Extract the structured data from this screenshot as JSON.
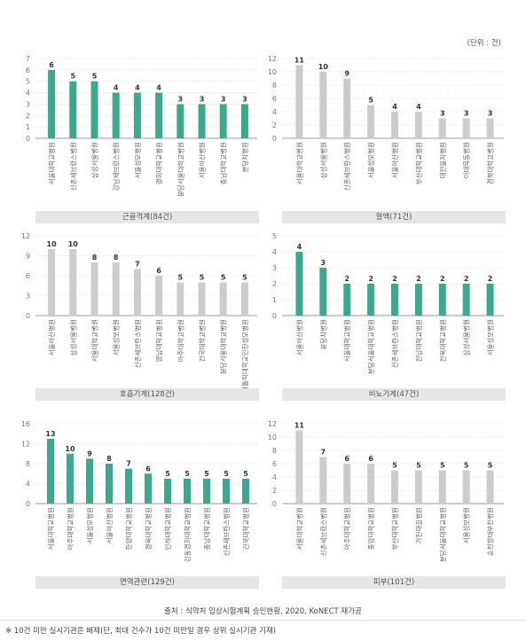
{
  "unit_label": "(단위 : 건)",
  "source": "출처 : 식약처 임상시험계획 승인현황, 2020, KoNECT 재가공",
  "footnote": "※ 10건 미만 실시기관은 배제(단, 최대 건수가 10건 미만일 경우 상위 실시기관 기재)",
  "colors": {
    "teal": "#3aaa8c",
    "gray": "#cccccc"
  },
  "chart_data": [
    {
      "type": "bar",
      "title": "근골격계(84건)",
      "color": "#3aaa8c",
      "ylim": [
        0,
        7
      ],
      "ticks": [
        0,
        1,
        2,
        3,
        4,
        5,
        6,
        7
      ],
      "categories": [
        "서울대학교병원",
        "신촌세브란스병원",
        "삼성서울병원",
        "강남세브란스병원",
        "서울성모병원",
        "경희대학교병원",
        "분당서울대학교병원",
        "서울아산병원",
        "충남대학교병원",
        "분당차병원"
      ],
      "values": [
        6,
        5,
        5,
        4,
        4,
        4,
        3,
        3,
        3,
        3
      ]
    },
    {
      "type": "bar",
      "title": "혈액(71건)",
      "color": "#cccccc",
      "ylim": [
        0,
        12
      ],
      "ticks": [
        0,
        2,
        4,
        6,
        8,
        10,
        12
      ],
      "categories": [
        "서울대학교병원",
        "삼성서울병원",
        "신촌세브란스병원",
        "서울성모병원",
        "서울아산병원",
        "부산대학교병원",
        "대전을지병원",
        "이대목동병원",
        "경북대학교병원"
      ],
      "values": [
        11,
        10,
        9,
        5,
        4,
        4,
        3,
        3,
        3
      ]
    },
    {
      "type": "bar",
      "title": "호흡기계(128건)",
      "color": "#cccccc",
      "ylim": [
        0,
        12
      ],
      "ticks": [
        0,
        3,
        6,
        9,
        12
      ],
      "categories": [
        "서울아산병원",
        "삼성서울병원",
        "서울대학교병원",
        "서울성모병원",
        "신촌세브란스병원",
        "영남대학교병원",
        "아주대학교병원",
        "건국대학교병원",
        "분당서울대학교병원",
        "가톨릭대학교인천성모병원"
      ],
      "values": [
        10,
        10,
        8,
        8,
        7,
        6,
        5,
        5,
        5,
        5
      ]
    },
    {
      "type": "bar",
      "title": "비뇨기계(47건)",
      "color": "#3aaa8c",
      "ylim": [
        0,
        5
      ],
      "ticks": [
        0,
        1,
        2,
        3,
        4,
        5
      ],
      "categories": [
        "서울아산병원",
        "분당차병원",
        "서울대학교병원",
        "분당서울대학교병원",
        "신촌세브란스병원",
        "전남대학교병원",
        "전북대학교병원",
        "삼성서울병원",
        "서울성모병원"
      ],
      "values": [
        4,
        3,
        2,
        2,
        2,
        2,
        2,
        2,
        2
      ]
    },
    {
      "type": "bar",
      "title": "면역관련(129건)",
      "color": "#3aaa8c",
      "ylim": [
        0,
        16
      ],
      "ticks": [
        0,
        4,
        8,
        12,
        16
      ],
      "categories": [
        "서울대학교병원",
        "아주대학교병원",
        "서울성모병원",
        "서울아산병원",
        "한양대학교병원",
        "경북대학교병원",
        "인하대학교병원",
        "강동경희대학교병원",
        "충남대학교병원",
        "신촌세브란스병원",
        "건국대학교병원"
      ],
      "values": [
        13,
        10,
        9,
        8,
        7,
        6,
        5,
        5,
        5,
        5,
        5
      ]
    },
    {
      "type": "bar",
      "title": "피부(101건)",
      "color": "#cccccc",
      "ylim": [
        0,
        12
      ],
      "ticks": [
        0,
        2,
        4,
        6,
        8,
        10,
        12
      ],
      "categories": [
        "서울대학교병원",
        "신촌세브란스병원",
        "아주대학교병원",
        "중앙대학교병원",
        "부산대학교병원",
        "가천대길병원",
        "분당서울대학교병원",
        "서울성모병원",
        "순천향대부천병원"
      ],
      "values": [
        11,
        7,
        6,
        6,
        5,
        5,
        5,
        5,
        5
      ]
    }
  ]
}
